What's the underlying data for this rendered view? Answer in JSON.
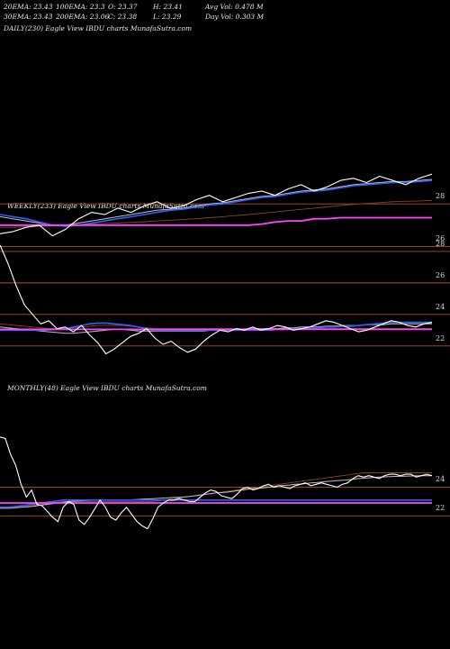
{
  "header": {
    "row1": [
      {
        "key": "ema20",
        "text": "20EMA: 23.43"
      },
      {
        "key": "ema100",
        "text": "100EMA: 23.3"
      },
      {
        "key": "open",
        "text": "O: 23.37"
      },
      {
        "key": "high",
        "text": "H: 23.41"
      },
      {
        "key": "avgvol",
        "text": "Avg Vol: 0.478  M"
      }
    ],
    "row2": [
      {
        "key": "ema30",
        "text": "30EMA: 23.43"
      },
      {
        "key": "ema200",
        "text": "200EMA: 23.06"
      },
      {
        "key": "close",
        "text": "C: 23.38"
      },
      {
        "key": "low",
        "text": "L: 23.29"
      },
      {
        "key": "dayvol",
        "text": "Day Vol: 0.303  M"
      }
    ]
  },
  "colors": {
    "background": "#000000",
    "price": "#ffffff",
    "ema_short": "#c0c0c0",
    "ema_blue": "#2f5fff",
    "ema_long": "#8b4513",
    "magenta": "#ff44ff",
    "level_line": "#b05020"
  },
  "chart_data": [
    {
      "type": "line",
      "title": "DAILY(230) Eagle  View  IBDU charts MunafaSutra.com",
      "panel": "daily",
      "series": [
        {
          "role": "price",
          "values": [
            26.6,
            26.7,
            26.9,
            27.0,
            26.5,
            26.8,
            27.3,
            27.6,
            27.5,
            27.8,
            27.6,
            27.9,
            28.1,
            27.8,
            27.9,
            28.2,
            28.4,
            28.1,
            28.3,
            28.5,
            28.6,
            28.4,
            28.7,
            28.9,
            28.6,
            28.8,
            29.1,
            29.2,
            29.0,
            29.3,
            29.1,
            28.9,
            29.2,
            29.4
          ]
        },
        {
          "role": "ema_short",
          "values": [
            27.4,
            27.3,
            27.2,
            27.1,
            27.0,
            27.0,
            27.1,
            27.2,
            27.3,
            27.4,
            27.5,
            27.6,
            27.7,
            27.75,
            27.8,
            27.9,
            28.0,
            28.05,
            28.15,
            28.25,
            28.35,
            28.4,
            28.5,
            28.6,
            28.65,
            28.7,
            28.8,
            28.9,
            28.95,
            29.0,
            29.05,
            29.05,
            29.1,
            29.15
          ]
        },
        {
          "role": "ema_blue",
          "values": [
            27.5,
            27.4,
            27.3,
            27.15,
            27.0,
            26.95,
            27.0,
            27.1,
            27.2,
            27.3,
            27.4,
            27.5,
            27.6,
            27.7,
            27.75,
            27.85,
            27.95,
            28.0,
            28.1,
            28.2,
            28.3,
            28.35,
            28.45,
            28.55,
            28.6,
            28.65,
            28.75,
            28.85,
            28.9,
            28.95,
            29.0,
            29.0,
            29.05,
            29.1
          ]
        },
        {
          "role": "ema_long",
          "values": [
            26.9,
            26.9,
            26.92,
            26.95,
            26.97,
            27.0,
            27.02,
            27.05,
            27.08,
            27.1,
            27.13,
            27.16,
            27.2,
            27.23,
            27.27,
            27.3,
            27.35,
            27.4,
            27.45,
            27.5,
            27.56,
            27.62,
            27.68,
            27.74,
            27.8,
            27.86,
            27.92,
            27.98,
            28.02,
            28.06,
            28.1,
            28.12,
            28.14,
            28.16
          ]
        },
        {
          "role": "magenta",
          "values": [
            27.0,
            27.0,
            27.0,
            27.0,
            27.0,
            27.0,
            27.0,
            27.0,
            27.0,
            27.0,
            27.0,
            27.0,
            27.0,
            27.0,
            27.0,
            27.0,
            27.0,
            27.0,
            27.0,
            27.0,
            27.05,
            27.15,
            27.2,
            27.2,
            27.3,
            27.3,
            27.35,
            27.35,
            27.35,
            27.35,
            27.35,
            27.35,
            27.35,
            27.35
          ]
        }
      ],
      "levels": [
        28.0,
        26.0
      ],
      "ylim": [
        25.3,
        30.8
      ],
      "tick_labels": [
        "28",
        "26"
      ]
    },
    {
      "type": "line",
      "title": "WEEKLY(233) Eagle  View  IBDU charts MunafaSutra.com",
      "panel": "weekly",
      "series": [
        {
          "role": "price",
          "values": [
            28.4,
            27.2,
            25.8,
            24.6,
            24.0,
            23.4,
            23.6,
            23.1,
            23.2,
            22.9,
            23.3,
            22.7,
            22.2,
            21.5,
            21.8,
            22.2,
            22.6,
            22.8,
            23.1,
            22.5,
            22.1,
            22.3,
            21.9,
            21.6,
            21.8,
            22.3,
            22.7,
            23.0,
            22.9,
            23.1,
            23.0,
            23.2,
            23.0,
            23.1,
            23.3,
            23.2,
            23.0,
            23.1,
            23.2,
            23.4,
            23.6,
            23.5,
            23.3,
            23.1,
            22.9,
            23.0,
            23.2,
            23.4,
            23.6,
            23.5,
            23.3,
            23.2,
            23.4,
            23.5
          ]
        },
        {
          "role": "ema_short",
          "values": [
            23.2,
            23.15,
            23.1,
            23.05,
            23.0,
            22.95,
            22.9,
            22.85,
            22.8,
            22.8,
            22.85,
            22.9,
            22.95,
            23.0,
            23.05,
            23.05,
            23.0,
            22.95,
            22.95,
            22.95,
            22.95,
            22.95,
            22.95,
            22.95,
            22.95,
            22.95,
            23.0,
            23.0,
            23.05,
            23.05,
            23.05,
            23.1,
            23.1,
            23.1,
            23.1,
            23.15,
            23.15,
            23.2,
            23.2,
            23.2,
            23.25,
            23.25,
            23.3,
            23.3,
            23.3,
            23.35,
            23.35,
            23.35,
            23.4,
            23.4,
            23.4,
            23.4,
            23.4,
            23.4
          ]
        },
        {
          "role": "ema_blue",
          "values": [
            23.0,
            23.0,
            23.0,
            23.0,
            23.0,
            23.0,
            23.02,
            23.05,
            23.1,
            23.2,
            23.3,
            23.4,
            23.45,
            23.45,
            23.4,
            23.35,
            23.3,
            23.2,
            23.1,
            23.0,
            23.0,
            23.0,
            23.0,
            23.0,
            23.0,
            23.0,
            23.0,
            23.0,
            23.0,
            23.0,
            23.0,
            23.0,
            23.0,
            23.0,
            23.05,
            23.05,
            23.1,
            23.1,
            23.1,
            23.15,
            23.2,
            23.2,
            23.25,
            23.25,
            23.3,
            23.35,
            23.4,
            23.45,
            23.5,
            23.5,
            23.5,
            23.5,
            23.5,
            23.5
          ]
        },
        {
          "role": "ema_long",
          "values": [
            23.4,
            23.35,
            23.3,
            23.25,
            23.2,
            23.15,
            23.1,
            23.1,
            23.1,
            23.15,
            23.2,
            23.25,
            23.3,
            23.3,
            23.3,
            23.3,
            23.25,
            23.2,
            23.15,
            23.1,
            23.1,
            23.1,
            23.1,
            23.1,
            23.1,
            23.1,
            23.1,
            23.1,
            23.1,
            23.1,
            23.1,
            23.1,
            23.1,
            23.1,
            23.1,
            23.1,
            23.1,
            23.1,
            23.1,
            23.1,
            23.1,
            23.1,
            23.1,
            23.1,
            23.1,
            23.1,
            23.1,
            23.1,
            23.1,
            23.1,
            23.1,
            23.1,
            23.1,
            23.1
          ]
        },
        {
          "role": "magenta",
          "values": [
            23.05,
            23.05,
            23.05,
            23.05,
            23.05,
            23.05,
            23.05,
            23.05,
            23.05,
            23.05,
            23.05,
            23.05,
            23.05,
            23.05,
            23.05,
            23.05,
            23.05,
            23.05,
            23.05,
            23.05,
            23.05,
            23.05,
            23.05,
            23.05,
            23.05,
            23.05,
            23.05,
            23.05,
            23.05,
            23.05,
            23.05,
            23.05,
            23.05,
            23.05,
            23.05,
            23.05,
            23.05,
            23.05,
            23.05,
            23.05,
            23.05,
            23.05,
            23.05,
            23.05,
            23.05,
            23.05,
            23.05,
            23.05,
            23.05,
            23.05,
            23.05,
            23.05,
            23.05,
            23.05
          ]
        }
      ],
      "levels": [
        28.0,
        26.0,
        24.0,
        22.0
      ],
      "ylim": [
        20.5,
        30.8
      ],
      "tick_labels": [
        "28",
        "26",
        "24",
        "22"
      ]
    },
    {
      "type": "line",
      "title": "MONTHLY(48) Eagle  View  IBDU charts MunafaSutra.com",
      "panel": "monthly",
      "series": [
        {
          "role": "price",
          "values": [
            27.5,
            27.4,
            26.3,
            25.5,
            24.2,
            23.3,
            23.8,
            22.8,
            22.7,
            22.3,
            21.9,
            21.6,
            22.6,
            23.0,
            22.8,
            21.7,
            21.4,
            21.9,
            22.5,
            23.1,
            22.6,
            21.9,
            21.7,
            22.2,
            22.6,
            22.1,
            21.6,
            21.3,
            21.1,
            21.8,
            22.6,
            22.9,
            23.1,
            23.1,
            23.2,
            23.1,
            23.0,
            23.0,
            23.3,
            23.6,
            23.8,
            23.7,
            23.4,
            23.3,
            23.2,
            23.5,
            23.9,
            24.0,
            23.8,
            23.9,
            24.1,
            24.2,
            24.0,
            24.1,
            24.0,
            23.9,
            24.1,
            24.2,
            24.3,
            24.1,
            24.2,
            24.3,
            24.2,
            24.1,
            24.0,
            24.2,
            24.3,
            24.6,
            24.8,
            24.7,
            24.8,
            24.7,
            24.6,
            24.8,
            24.9,
            24.9,
            24.8,
            24.9,
            24.9,
            24.7,
            24.8,
            24.9,
            24.8
          ]
        },
        {
          "role": "ema_short",
          "values": [
            22.55,
            22.55,
            22.56,
            22.58,
            22.6,
            22.62,
            22.65,
            22.7,
            22.75,
            22.8,
            22.85,
            22.9,
            22.95,
            23.0,
            23.02,
            23.04,
            23.06,
            23.08,
            23.1,
            23.1,
            23.1,
            23.1,
            23.1,
            23.1,
            23.1,
            23.12,
            23.14,
            23.16,
            23.18,
            23.2,
            23.22,
            23.24,
            23.26,
            23.28,
            23.3,
            23.32,
            23.35,
            23.4,
            23.45,
            23.5,
            23.55,
            23.6,
            23.62,
            23.65,
            23.7,
            23.75,
            23.8,
            23.85,
            23.9,
            23.92,
            23.95,
            24.0,
            24.05,
            24.1,
            24.12,
            24.15,
            24.2,
            24.22,
            24.25,
            24.3,
            24.32,
            24.35,
            24.4,
            24.42,
            24.45,
            24.48,
            24.5,
            24.55,
            24.6,
            24.62,
            24.65,
            24.68,
            24.7,
            24.72,
            24.74,
            24.75,
            24.76,
            24.77,
            24.78,
            24.79,
            24.8,
            24.8,
            24.8
          ]
        },
        {
          "role": "ema_blue",
          "values": [
            22.6,
            22.6,
            22.62,
            22.65,
            22.7,
            22.75,
            22.8,
            22.85,
            22.9,
            22.95,
            23.0,
            23.05,
            23.1,
            23.1,
            23.1,
            23.1,
            23.1,
            23.1,
            23.1,
            23.1,
            23.1,
            23.1,
            23.1,
            23.1,
            23.1,
            23.1,
            23.1,
            23.1,
            23.1,
            23.1,
            23.1,
            23.1,
            23.1,
            23.1,
            23.1,
            23.1,
            23.1,
            23.1,
            23.1,
            23.1,
            23.1,
            23.1,
            23.1,
            23.1,
            23.1,
            23.1,
            23.1,
            23.1,
            23.1,
            23.1,
            23.1,
            23.1,
            23.1,
            23.1,
            23.1,
            23.1,
            23.1,
            23.1,
            23.1,
            23.1,
            23.1,
            23.1,
            23.1,
            23.1,
            23.1,
            23.1,
            23.1,
            23.1,
            23.1,
            23.1,
            23.1,
            23.1,
            23.1,
            23.1,
            23.1,
            23.1,
            23.1,
            23.1,
            23.1,
            23.1,
            23.1,
            23.1,
            23.1
          ]
        },
        {
          "role": "ema_long",
          "values": [
            22.5,
            22.5,
            22.52,
            22.55,
            22.6,
            22.65,
            22.7,
            22.75,
            22.8,
            22.85,
            22.9,
            22.95,
            23.0,
            23.0,
            23.0,
            23.0,
            23.0,
            23.0,
            23.0,
            23.0,
            23.0,
            23.0,
            23.0,
            23.0,
            23.0,
            23.0,
            23.0,
            23.0,
            23.0,
            23.0,
            23.05,
            23.1,
            23.15,
            23.2,
            23.25,
            23.3,
            23.35,
            23.4,
            23.45,
            23.5,
            23.55,
            23.6,
            23.65,
            23.7,
            23.75,
            23.8,
            23.85,
            23.9,
            23.95,
            24.0,
            24.05,
            24.1,
            24.15,
            24.2,
            24.25,
            24.3,
            24.35,
            24.4,
            24.45,
            24.5,
            24.55,
            24.6,
            24.65,
            24.7,
            24.75,
            24.8,
            24.85,
            24.9,
            24.95,
            25.0,
            25.0,
            25.0,
            25.0,
            25.0,
            25.0,
            25.0,
            25.0,
            25.0,
            25.0,
            25.0,
            25.0,
            25.0,
            25.0
          ]
        },
        {
          "role": "magenta",
          "values": [
            22.9,
            22.9,
            22.9,
            22.9,
            22.9,
            22.9,
            22.9,
            22.9,
            22.9,
            22.9,
            22.9,
            22.9,
            22.9,
            22.9,
            22.9,
            22.9,
            22.9,
            22.9,
            22.9,
            22.9,
            22.9,
            22.9,
            22.9,
            22.9,
            22.9,
            22.9,
            22.9,
            22.9,
            22.9,
            22.9,
            22.9,
            22.9,
            22.9,
            22.9,
            22.9,
            22.9,
            22.9,
            22.9,
            22.9,
            22.9,
            22.9,
            22.9,
            22.9,
            22.9,
            22.9,
            22.9,
            22.9,
            22.9,
            22.9,
            22.9,
            22.9,
            22.9,
            22.9,
            22.9,
            22.9,
            22.9,
            22.9,
            22.9,
            22.9,
            22.9,
            22.9,
            22.9,
            22.9,
            22.9,
            22.9,
            22.9,
            22.9,
            22.9,
            22.9,
            22.9,
            22.9,
            22.9,
            22.9,
            22.9,
            22.9,
            22.9,
            22.9,
            22.9,
            22.9,
            22.9,
            22.9,
            22.9,
            22.9
          ]
        }
      ],
      "levels": [
        24.0,
        22.0
      ],
      "ylim": [
        19.0,
        27.8
      ],
      "tick_labels": [
        "24",
        "22"
      ]
    }
  ]
}
